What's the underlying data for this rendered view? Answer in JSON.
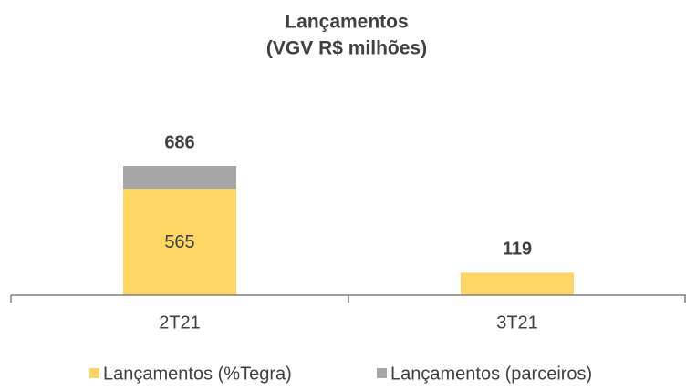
{
  "chart_data": {
    "type": "stacked_bar",
    "title": "Lançamentos",
    "subtitle": "(VGV R$ milhões)",
    "categories": [
      "2T21",
      "3T21"
    ],
    "series": [
      {
        "name": "Lançamentos (%Tegra)",
        "color": "#fdd666",
        "values": [
          565,
          119
        ]
      },
      {
        "name": "Lançamentos (parceiros)",
        "color": "#a6a6a6",
        "values": [
          121,
          0
        ]
      }
    ],
    "totals": [
      686,
      119
    ],
    "legend": "bottom"
  }
}
